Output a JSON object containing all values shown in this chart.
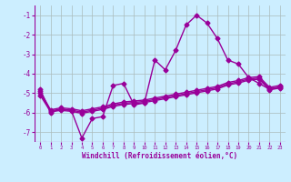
{
  "xlabel": "Windchill (Refroidissement éolien,°C)",
  "bg_color": "#cceeff",
  "grid_color": "#aabbbb",
  "line_color": "#990099",
  "xlim": [
    -0.5,
    23.5
  ],
  "ylim": [
    -7.5,
    -0.5
  ],
  "yticks": [
    -7,
    -6,
    -5,
    -4,
    -3,
    -2,
    -1
  ],
  "xticks": [
    0,
    1,
    2,
    3,
    4,
    5,
    6,
    7,
    8,
    9,
    10,
    11,
    12,
    13,
    14,
    15,
    16,
    17,
    18,
    19,
    20,
    21,
    22,
    23
  ],
  "line0_y": [
    -4.8,
    -6.0,
    -5.8,
    -5.9,
    -7.3,
    -6.3,
    -6.2,
    -4.6,
    -4.5,
    -5.6,
    -5.5,
    -3.3,
    -3.8,
    -2.8,
    -1.5,
    -1.0,
    -1.4,
    -2.2,
    -3.3,
    -3.5,
    -4.2,
    -4.5,
    -4.8,
    -4.7
  ],
  "line1_y": [
    -4.9,
    -5.85,
    -5.75,
    -5.8,
    -5.9,
    -5.8,
    -5.7,
    -5.55,
    -5.45,
    -5.4,
    -5.35,
    -5.25,
    -5.15,
    -5.05,
    -4.95,
    -4.85,
    -4.75,
    -4.65,
    -4.45,
    -4.35,
    -4.2,
    -4.15,
    -4.7,
    -4.6
  ],
  "line2_y": [
    -5.0,
    -5.9,
    -5.82,
    -5.87,
    -5.97,
    -5.87,
    -5.77,
    -5.62,
    -5.52,
    -5.47,
    -5.42,
    -5.32,
    -5.22,
    -5.12,
    -5.02,
    -4.92,
    -4.82,
    -4.72,
    -4.52,
    -4.42,
    -4.27,
    -4.22,
    -4.77,
    -4.67
  ],
  "line3_y": [
    -5.1,
    -5.95,
    -5.88,
    -5.93,
    -6.03,
    -5.93,
    -5.83,
    -5.68,
    -5.58,
    -5.53,
    -5.48,
    -5.38,
    -5.28,
    -5.18,
    -5.08,
    -4.98,
    -4.88,
    -4.78,
    -4.58,
    -4.48,
    -4.33,
    -4.28,
    -4.83,
    -4.73
  ]
}
